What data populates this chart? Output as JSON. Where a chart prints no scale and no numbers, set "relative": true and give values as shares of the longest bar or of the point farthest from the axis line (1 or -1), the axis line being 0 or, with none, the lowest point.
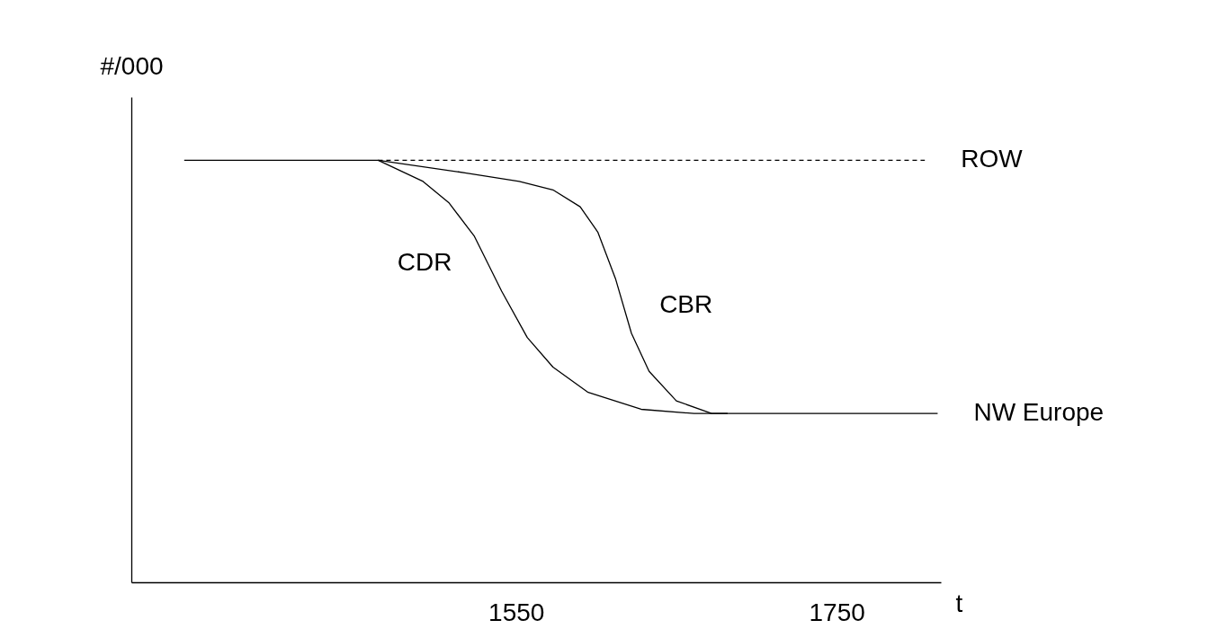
{
  "chart_data": {
    "type": "line",
    "relative": true,
    "ylabel": "#/000",
    "xlabel": "t",
    "xlim": [
      1310,
      1815
    ],
    "xticks": [
      1550,
      1750
    ],
    "series": [
      {
        "name": "CBR",
        "color": "#000000",
        "line_style": "solid",
        "x": [
          1343,
          1464,
          1519,
          1552,
          1573,
          1590,
          1601,
          1612,
          1622,
          1633,
          1650,
          1672,
          1682,
          1813
        ],
        "values": [
          1,
          1,
          0.97,
          0.95,
          0.93,
          0.89,
          0.83,
          0.72,
          0.59,
          0.5,
          0.43,
          0.4,
          0.4,
          0.4
        ]
      },
      {
        "name": "CDR",
        "color": "#000000",
        "line_style": "solid",
        "x": [
          1464,
          1492,
          1508,
          1524,
          1541,
          1557,
          1573,
          1595,
          1628,
          1661,
          1682
        ],
        "values": [
          1,
          0.95,
          0.9,
          0.82,
          0.69,
          0.58,
          0.51,
          0.45,
          0.41,
          0.4,
          0.4
        ]
      },
      {
        "name": "ROW",
        "color": "#000000",
        "line_style": "dashed",
        "x": [
          1464,
          1805
        ],
        "values": [
          1,
          1
        ]
      }
    ],
    "annotations": [
      "NW Europe"
    ]
  }
}
